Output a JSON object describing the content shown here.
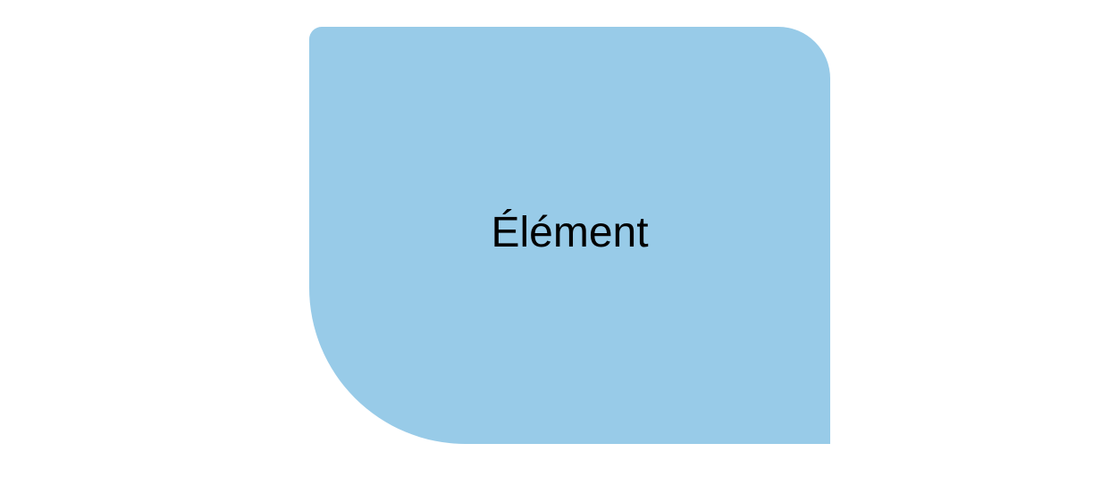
{
  "shape": {
    "label": "Élément",
    "fill_color": "#98cbe8",
    "text_color": "#000000"
  },
  "background_color": "#ffffff"
}
